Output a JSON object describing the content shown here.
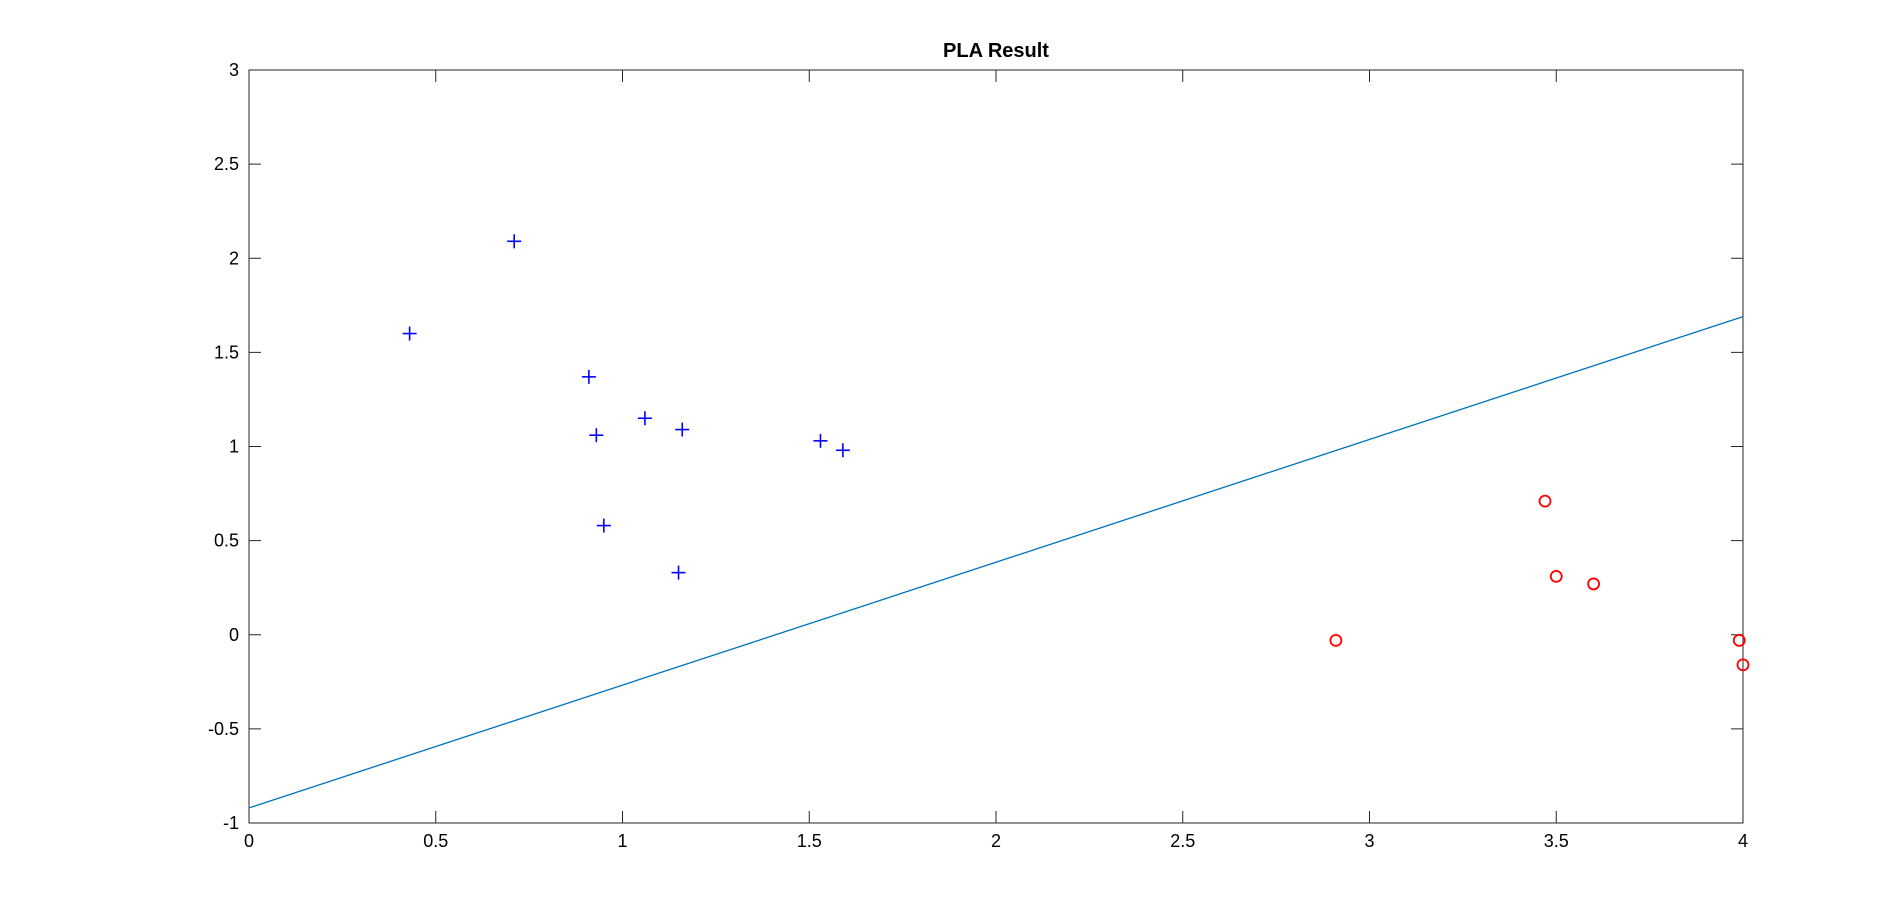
{
  "chart_data": {
    "type": "scatter",
    "title": "PLA Result",
    "xlabel": "",
    "ylabel": "",
    "xlim": [
      0,
      4
    ],
    "ylim": [
      -1,
      3
    ],
    "x_ticks": [
      0,
      0.5,
      1,
      1.5,
      2,
      2.5,
      3,
      3.5,
      4
    ],
    "x_tick_labels": [
      "0",
      "0.5",
      "1",
      "1.5",
      "2",
      "2.5",
      "3",
      "3.5",
      "4"
    ],
    "y_ticks": [
      -1,
      -0.5,
      0,
      0.5,
      1,
      1.5,
      2,
      2.5,
      3
    ],
    "y_tick_labels": [
      "-1",
      "-0.5",
      "0",
      "0.5",
      "1",
      "1.5",
      "2",
      "2.5",
      "3"
    ],
    "grid": false,
    "legend": false,
    "series": [
      {
        "marker": "plus",
        "color": "#0000ff",
        "points": [
          [
            0.43,
            1.6
          ],
          [
            0.71,
            2.09
          ],
          [
            0.91,
            1.37
          ],
          [
            0.93,
            1.06
          ],
          [
            0.95,
            0.58
          ],
          [
            1.06,
            1.15
          ],
          [
            1.16,
            1.09
          ],
          [
            1.15,
            0.33
          ],
          [
            1.53,
            1.03
          ],
          [
            1.59,
            0.98
          ]
        ]
      },
      {
        "marker": "circle",
        "color": "#ff0000",
        "points": [
          [
            2.91,
            -0.03
          ],
          [
            3.47,
            0.71
          ],
          [
            3.5,
            0.31
          ],
          [
            3.6,
            0.27
          ],
          [
            3.99,
            -0.03
          ],
          [
            4.0,
            -0.16
          ]
        ]
      },
      {
        "type": "line",
        "color": "#0072bd",
        "points": [
          [
            0,
            -0.92
          ],
          [
            4,
            1.69
          ]
        ]
      }
    ]
  }
}
